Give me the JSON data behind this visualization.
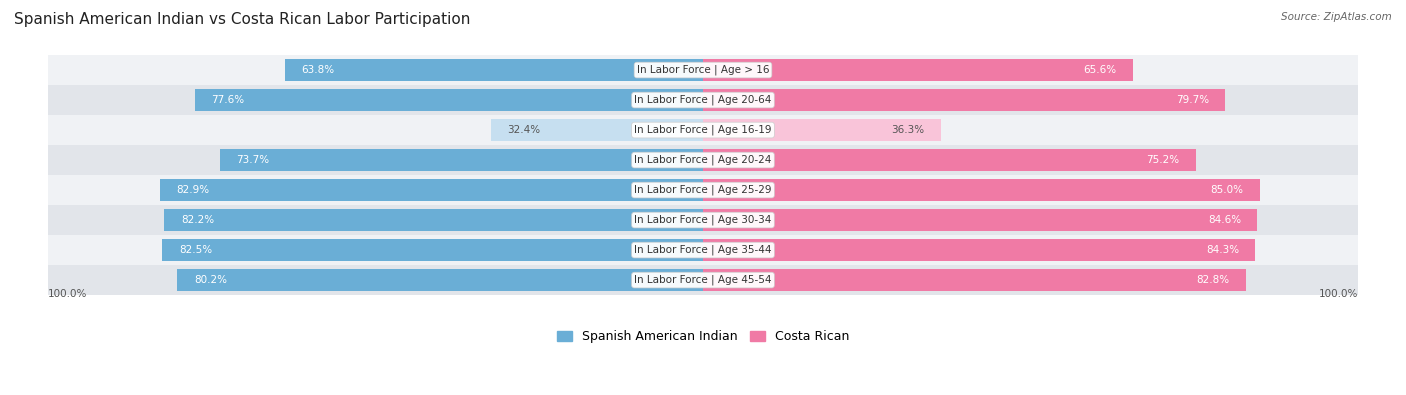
{
  "title": "Spanish American Indian vs Costa Rican Labor Participation",
  "source": "Source: ZipAtlas.com",
  "categories": [
    "In Labor Force | Age > 16",
    "In Labor Force | Age 20-64",
    "In Labor Force | Age 16-19",
    "In Labor Force | Age 20-24",
    "In Labor Force | Age 25-29",
    "In Labor Force | Age 30-34",
    "In Labor Force | Age 35-44",
    "In Labor Force | Age 45-54"
  ],
  "spanish_values": [
    63.8,
    77.6,
    32.4,
    73.7,
    82.9,
    82.2,
    82.5,
    80.2
  ],
  "costa_values": [
    65.6,
    79.7,
    36.3,
    75.2,
    85.0,
    84.6,
    84.3,
    82.8
  ],
  "spanish_color": "#6aaed6",
  "costa_color": "#f07aa5",
  "spanish_light": "#c6dff0",
  "costa_light": "#f9c4d9",
  "background_color": "#ffffff",
  "row_bg_light": "#f0f2f5",
  "row_bg_dark": "#e2e5ea",
  "title_fontsize": 11,
  "label_fontsize": 7.5,
  "value_fontsize": 7.5,
  "legend_fontsize": 9,
  "axis_label": "100.0%",
  "max_val": 100.0
}
